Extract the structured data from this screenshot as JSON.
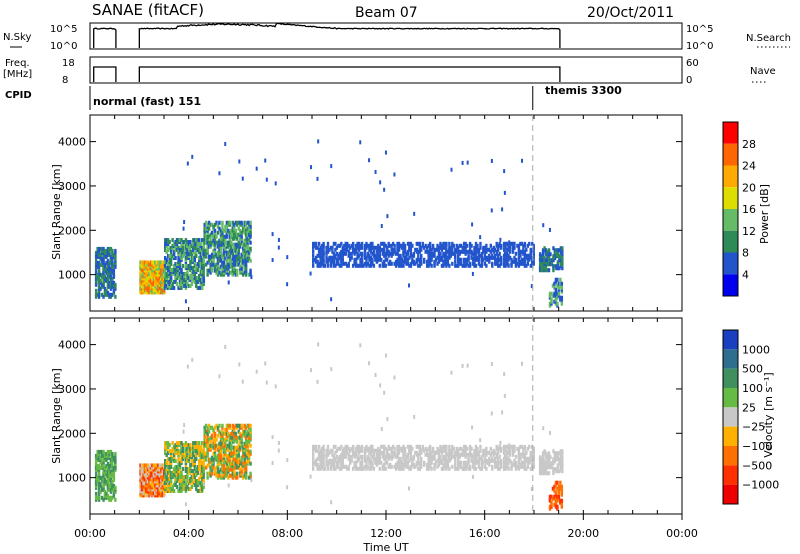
{
  "header": {
    "station": "SANAE (fitACF)",
    "beam": "Beam 07",
    "date": "20/Oct/2011"
  },
  "side_labels": {
    "nsky": "N.Sky",
    "freq_line1": "Freq.",
    "freq_line2": "[MHz]",
    "cpid": "CPID",
    "nsearch": "N.Search",
    "nave": "Nave"
  },
  "cpid_modes": [
    {
      "label": "normal (fast) 151",
      "start_hour": 0.0
    },
    {
      "label": "themis 3300",
      "start_hour": 17.95
    }
  ],
  "chart_data": [
    {
      "type": "line",
      "name": "noise-panel",
      "left_ticks": [
        "10^5",
        "10^0"
      ],
      "right_ticks": [
        "10^5",
        "10^0"
      ],
      "segments": [
        [
          0.15,
          1.05
        ],
        [
          2.0,
          19.05
        ]
      ],
      "level_note": "near top of panel"
    },
    {
      "type": "line",
      "name": "frequency-nave-panel",
      "left_ticks": [
        "18",
        "8"
      ],
      "right_ticks": [
        "60",
        "0"
      ],
      "segments": [
        [
          0.15,
          1.05
        ],
        [
          2.0,
          19.05
        ]
      ]
    },
    {
      "type": "heatmap",
      "name": "power",
      "ylabel": "Slant Range [km]",
      "ylim": [
        180,
        4600
      ],
      "yticks": [
        1000,
        2000,
        3000,
        4000
      ],
      "xlim": [
        0,
        24
      ],
      "colorbar_label": "Power [dB]",
      "colorbar_ticks": [
        "4",
        "8",
        "12",
        "16",
        "20",
        "24",
        "28"
      ],
      "colorbar_colors": [
        "#0000ee",
        "#2255cc",
        "#2e8b57",
        "#66bb66",
        "#dddd00",
        "#ffaa00",
        "#ff6600",
        "#ff0000"
      ]
    },
    {
      "type": "heatmap",
      "name": "velocity",
      "ylabel": "Slant Range [km]",
      "ylim": [
        180,
        4600
      ],
      "yticks": [
        1000,
        2000,
        3000,
        4000
      ],
      "xlim": [
        0,
        24
      ],
      "xlabel": "Time UT",
      "xticks": [
        "00:00",
        "04:00",
        "08:00",
        "12:00",
        "16:00",
        "20:00",
        "00:00"
      ],
      "colorbar_label": "Velocity [m s⁻¹]",
      "colorbar_ticks": [
        "1000",
        "500",
        "100",
        "25",
        "−25",
        "−100",
        "−500",
        "−1000"
      ],
      "colorbar_colors": [
        "#1a3fbf",
        "#2e6e8e",
        "#3f8f5f",
        "#66bb44",
        "#c8c8c8",
        "#ffb000",
        "#ff7000",
        "#ff3000",
        "#ee0000"
      ]
    }
  ]
}
